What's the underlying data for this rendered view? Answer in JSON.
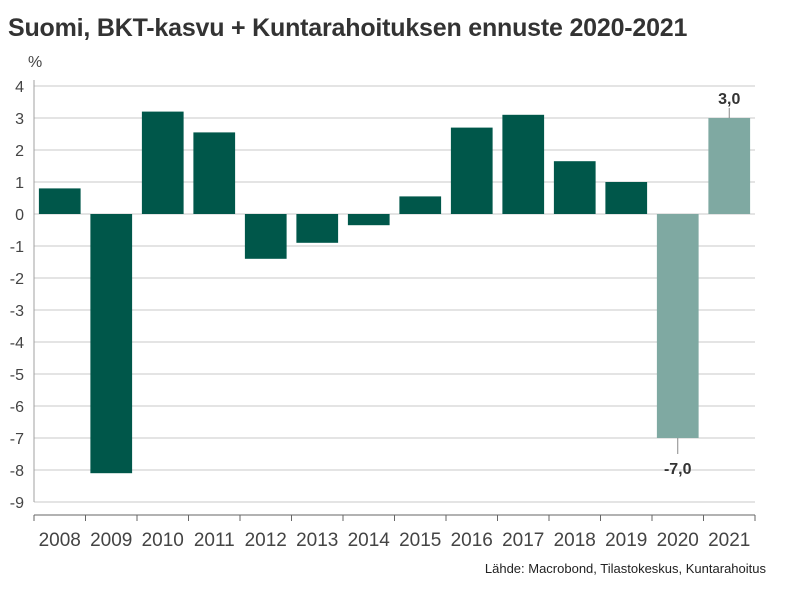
{
  "chart_data": {
    "type": "bar",
    "title": "Suomi, BKT-kasvu + Kuntarahoituksen ennuste 2020-2021",
    "ylabel": "%",
    "xlabel": "",
    "source": "Lähde: Macrobond, Tilastokeskus, Kuntarahoitus",
    "categories": [
      "2008",
      "2009",
      "2010",
      "2011",
      "2012",
      "2013",
      "2014",
      "2015",
      "2016",
      "2017",
      "2018",
      "2019",
      "2020",
      "2021"
    ],
    "values": [
      0.8,
      -8.1,
      3.2,
      2.55,
      -1.4,
      -0.9,
      -0.35,
      0.55,
      2.7,
      3.1,
      1.65,
      1.0,
      -7.0,
      3.0
    ],
    "forecast": [
      false,
      false,
      false,
      false,
      false,
      false,
      false,
      false,
      false,
      false,
      false,
      false,
      true,
      true
    ],
    "data_labels": [
      {
        "index": 12,
        "text": "-7,0"
      },
      {
        "index": 13,
        "text": "3,0"
      }
    ],
    "ylim": [
      -9,
      4
    ],
    "yticks": [
      4,
      3,
      2,
      1,
      0,
      -1,
      -2,
      -3,
      -4,
      -5,
      -6,
      -7,
      -8,
      -9
    ],
    "grid": true,
    "legend": "none",
    "colors": {
      "actual": "#00574a",
      "forecast": "#7fa9a2",
      "grid": "#c8c8c8",
      "axis": "#a0a0a0"
    }
  }
}
